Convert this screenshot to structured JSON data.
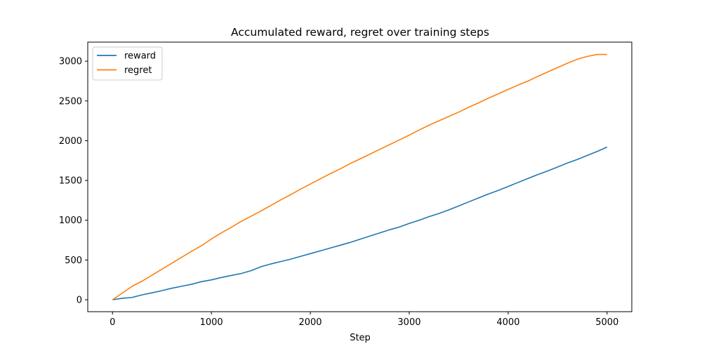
{
  "chart_data": {
    "type": "line",
    "title": "Accumulated reward, regret over training steps",
    "xlabel": "Step",
    "ylabel": "",
    "xlim": [
      -250,
      5250
    ],
    "ylim": [
      -150,
      3240
    ],
    "xticks": [
      0,
      1000,
      2000,
      3000,
      4000,
      5000
    ],
    "yticks": [
      0,
      500,
      1000,
      1500,
      2000,
      2500,
      3000
    ],
    "grid": false,
    "legend": "top-left",
    "x": [
      0,
      100,
      200,
      300,
      400,
      500,
      600,
      700,
      800,
      900,
      1000,
      1100,
      1200,
      1300,
      1400,
      1500,
      1600,
      1700,
      1800,
      1900,
      2000,
      2100,
      2200,
      2300,
      2400,
      2500,
      2600,
      2700,
      2800,
      2900,
      3000,
      3100,
      3200,
      3300,
      3400,
      3500,
      3600,
      3700,
      3800,
      3900,
      4000,
      4100,
      4200,
      4300,
      4400,
      4500,
      4600,
      4700,
      4800,
      4900,
      5000
    ],
    "series": [
      {
        "name": "reward",
        "color": "#1f77b4",
        "values": [
          0,
          18,
          30,
          62,
          88,
          115,
          145,
          170,
          195,
          228,
          250,
          280,
          305,
          330,
          365,
          415,
          450,
          480,
          510,
          545,
          580,
          615,
          650,
          685,
          720,
          760,
          800,
          840,
          880,
          915,
          960,
          1000,
          1045,
          1085,
          1130,
          1180,
          1230,
          1280,
          1330,
          1375,
          1425,
          1475,
          1525,
          1575,
          1620,
          1670,
          1720,
          1765,
          1815,
          1865,
          1920
        ]
      },
      {
        "name": "regret",
        "color": "#ff7f0e",
        "values": [
          0,
          85,
          170,
          235,
          310,
          385,
          460,
          535,
          610,
          680,
          765,
          840,
          910,
          985,
          1050,
          1115,
          1185,
          1255,
          1320,
          1390,
          1455,
          1520,
          1585,
          1645,
          1710,
          1770,
          1830,
          1890,
          1950,
          2010,
          2070,
          2135,
          2195,
          2250,
          2305,
          2360,
          2420,
          2475,
          2535,
          2590,
          2645,
          2700,
          2750,
          2810,
          2865,
          2920,
          2975,
          3025,
          3060,
          3085,
          3085
        ]
      }
    ]
  }
}
